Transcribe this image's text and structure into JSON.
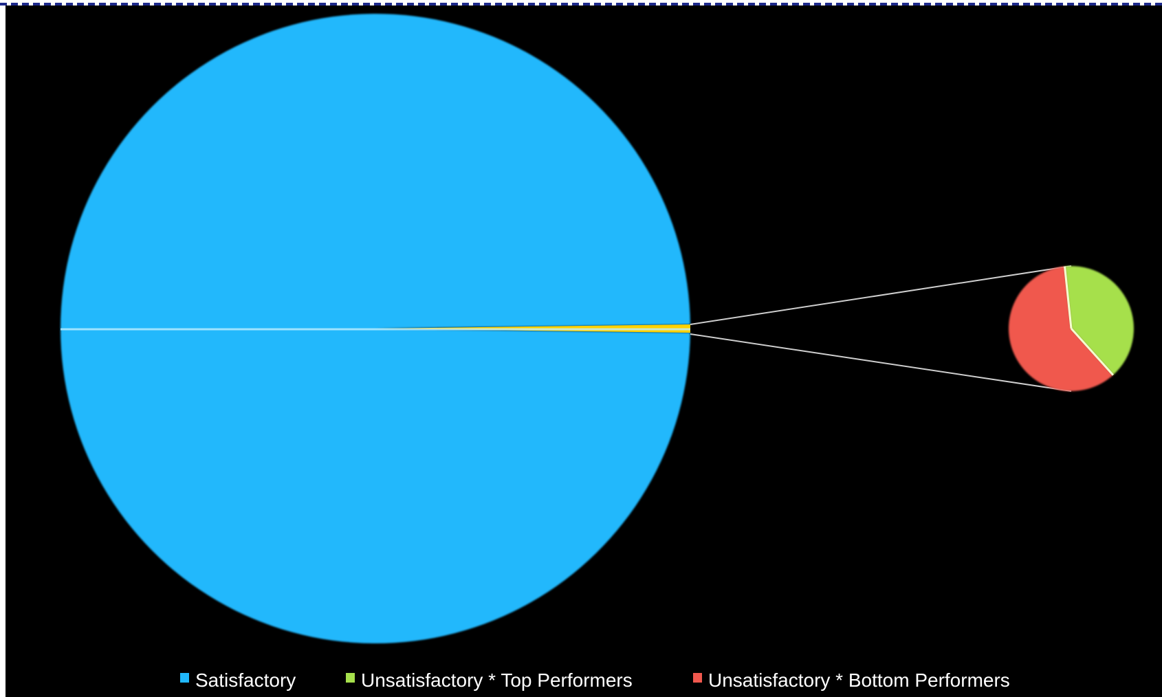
{
  "chart_data": {
    "type": "pie",
    "subtype": "pie-of-pie",
    "title": "",
    "slices": [
      {
        "name": "Satisfactory",
        "value": 99.6,
        "color": "#20b8fc"
      },
      {
        "name": "Unsatisfactory * Top Performers",
        "value": 0.16,
        "color": "#a6e04c"
      },
      {
        "name": "Unsatisfactory * Bottom Performers",
        "value": 0.24,
        "color": "#f0584e"
      }
    ],
    "secondary_pie": {
      "series": [
        "Unsatisfactory * Top Performers",
        "Unsatisfactory * Bottom Performers"
      ],
      "aggregate_color": "#ffd200"
    },
    "legend": {
      "placement": "bottom",
      "entries": [
        "Satisfactory",
        "Unsatisfactory * Top Performers",
        "Unsatisfactory * Bottom Performers"
      ]
    },
    "background_color": "#000000",
    "border_color": "#1e2a8c"
  }
}
